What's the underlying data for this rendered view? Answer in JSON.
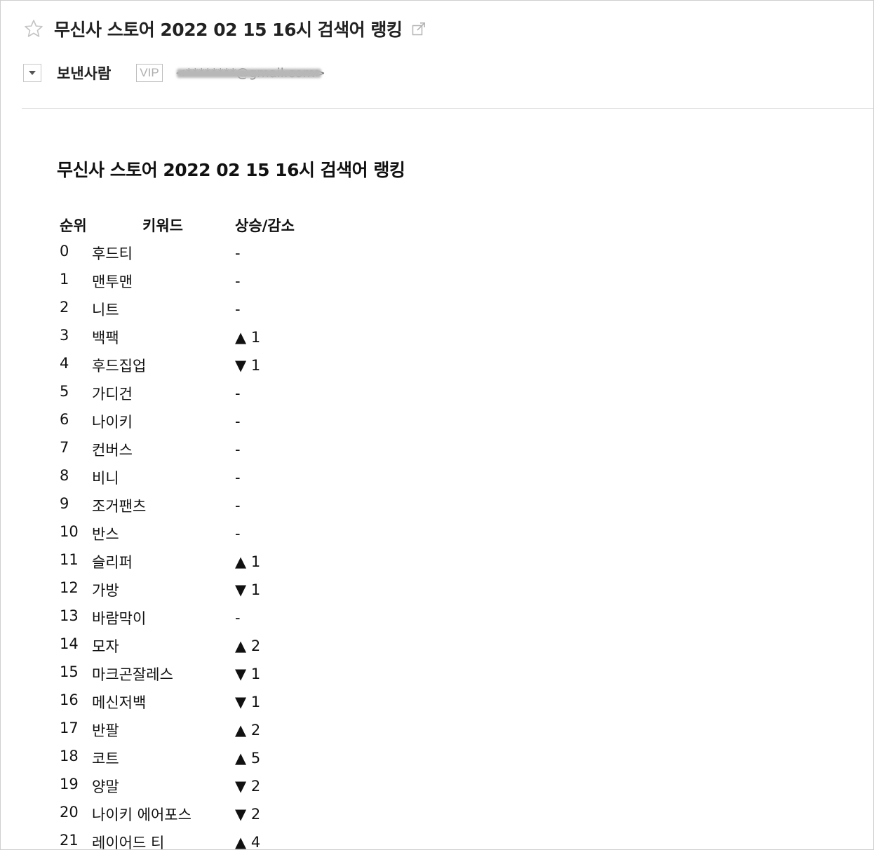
{
  "mail": {
    "subject": "무신사 스토어 2022 02 15 16시 검색어 랭킹",
    "sender_label": "보낸사람",
    "vip_label": "VIP",
    "sender_email": "<********@gmail.com>"
  },
  "content": {
    "title": "무신사 스토어 2022 02 15 16시 검색어 랭킹",
    "headers": {
      "rank": "순위",
      "keyword": "키워드",
      "change": "상승/감소"
    },
    "rows": [
      {
        "rank": "0",
        "keyword": "후드티",
        "change": "-"
      },
      {
        "rank": "1",
        "keyword": "맨투맨",
        "change": "-"
      },
      {
        "rank": "2",
        "keyword": "니트",
        "change": "-"
      },
      {
        "rank": "3",
        "keyword": "백팩",
        "change": "▲ 1"
      },
      {
        "rank": "4",
        "keyword": "후드집업",
        "change": "▼ 1"
      },
      {
        "rank": "5",
        "keyword": "가디건",
        "change": "-"
      },
      {
        "rank": "6",
        "keyword": "나이키",
        "change": "-"
      },
      {
        "rank": "7",
        "keyword": "컨버스",
        "change": "-"
      },
      {
        "rank": "8",
        "keyword": "비니",
        "change": "-"
      },
      {
        "rank": "9",
        "keyword": "조거팬츠",
        "change": "-"
      },
      {
        "rank": "10",
        "keyword": "반스",
        "change": "-"
      },
      {
        "rank": "11",
        "keyword": "슬리퍼",
        "change": "▲ 1"
      },
      {
        "rank": "12",
        "keyword": "가방",
        "change": "▼ 1"
      },
      {
        "rank": "13",
        "keyword": "바람막이",
        "change": "-"
      },
      {
        "rank": "14",
        "keyword": "모자",
        "change": "▲ 2"
      },
      {
        "rank": "15",
        "keyword": "마크곤잘레스",
        "change": "▼ 1"
      },
      {
        "rank": "16",
        "keyword": "메신저백",
        "change": "▼ 1"
      },
      {
        "rank": "17",
        "keyword": "반팔",
        "change": "▲ 2"
      },
      {
        "rank": "18",
        "keyword": "코트",
        "change": "▲ 5"
      },
      {
        "rank": "19",
        "keyword": "양말",
        "change": "▼ 2"
      },
      {
        "rank": "20",
        "keyword": "나이키 에어포스",
        "change": "▼ 2"
      },
      {
        "rank": "21",
        "keyword": "레이어드 티",
        "change": "▲ 4"
      }
    ]
  },
  "icons": {
    "star": "star-outline-icon",
    "popout": "external-link-icon",
    "toggle": "caret-down-icon"
  },
  "colors": {
    "text": "#111111",
    "muted": "#b0b0b0",
    "divider": "#dedede"
  }
}
